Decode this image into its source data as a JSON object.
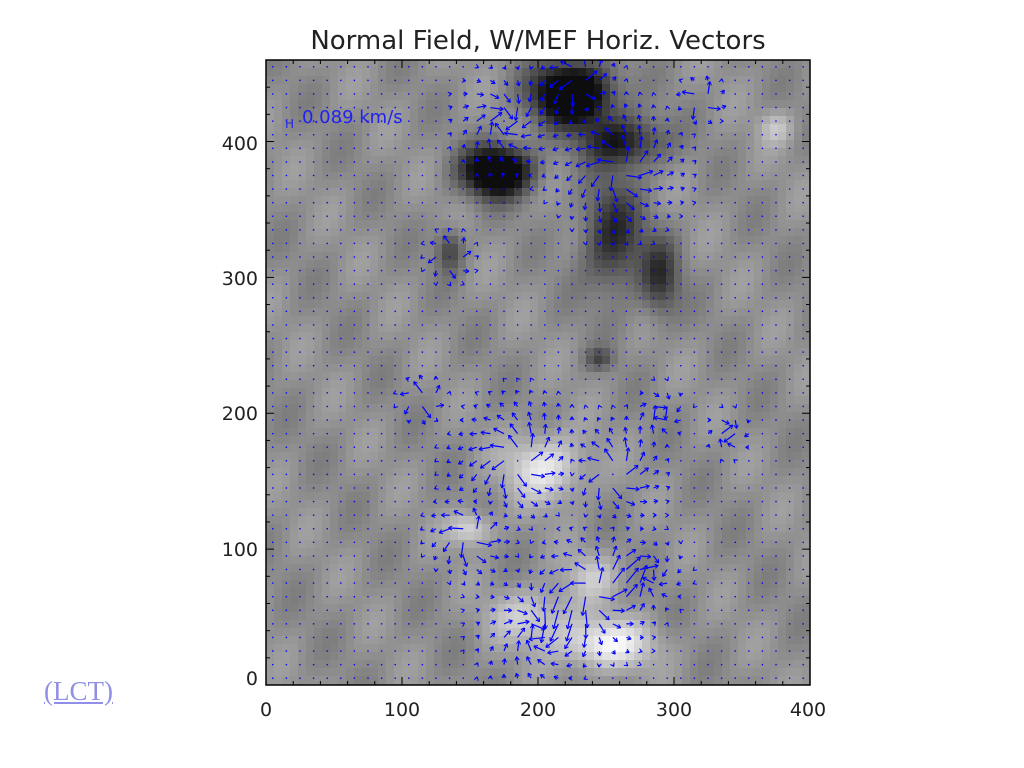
{
  "link": {
    "label": "(LCT)"
  },
  "chart_data": {
    "type": "heatmap",
    "title": "Normal Field, W/MEF Horiz. Vectors",
    "xlabel": "",
    "ylabel": "",
    "xlim": [
      0,
      400
    ],
    "ylim": [
      0,
      460
    ],
    "xticks": [
      "0",
      "100",
      "200",
      "300",
      "400"
    ],
    "yticks": [
      "0",
      "100",
      "200",
      "300",
      "400"
    ],
    "overlay": "velocity vectors",
    "vector_color": "#0000ff",
    "annotation": {
      "prefix": "H",
      "text": "0.089 km/s",
      "x": 20,
      "y": 415
    },
    "dark_regions": [
      {
        "x": 225,
        "y": 435,
        "sx": 28,
        "sy": 22,
        "amp": 0.85
      },
      {
        "x": 170,
        "y": 378,
        "sx": 24,
        "sy": 18,
        "amp": 0.85
      },
      {
        "x": 262,
        "y": 400,
        "sx": 30,
        "sy": 18,
        "amp": 0.45
      },
      {
        "x": 255,
        "y": 330,
        "sx": 22,
        "sy": 40,
        "amp": 0.4
      },
      {
        "x": 290,
        "y": 300,
        "sx": 14,
        "sy": 28,
        "amp": 0.35
      },
      {
        "x": 135,
        "y": 320,
        "sx": 10,
        "sy": 16,
        "amp": 0.3
      },
      {
        "x": 245,
        "y": 240,
        "sx": 10,
        "sy": 8,
        "amp": 0.25
      }
    ],
    "bright_regions": [
      {
        "x": 205,
        "y": 160,
        "sx": 28,
        "sy": 24,
        "amp": 0.35
      },
      {
        "x": 150,
        "y": 115,
        "sx": 16,
        "sy": 12,
        "amp": 0.3
      },
      {
        "x": 250,
        "y": 30,
        "sx": 34,
        "sy": 18,
        "amp": 0.4
      },
      {
        "x": 195,
        "y": 50,
        "sx": 30,
        "sy": 20,
        "amp": 0.25
      },
      {
        "x": 240,
        "y": 80,
        "sx": 20,
        "sy": 18,
        "amp": 0.2
      },
      {
        "x": 375,
        "y": 410,
        "sx": 12,
        "sy": 12,
        "amp": 0.2
      }
    ],
    "vortices": [
      {
        "x": 185,
        "y": 165,
        "r": 28,
        "s": 1
      },
      {
        "x": 255,
        "y": 155,
        "r": 22,
        "s": 1
      },
      {
        "x": 115,
        "y": 210,
        "r": 10,
        "s": 1
      },
      {
        "x": 240,
        "y": 70,
        "r": 30,
        "s": 1
      },
      {
        "x": 200,
        "y": 40,
        "r": 26,
        "s": -1
      },
      {
        "x": 150,
        "y": 110,
        "r": 18,
        "s": 1
      },
      {
        "x": 175,
        "y": 415,
        "r": 22,
        "s": -1
      },
      {
        "x": 260,
        "y": 380,
        "r": 28,
        "s": 1
      },
      {
        "x": 135,
        "y": 315,
        "r": 10,
        "s": 1
      },
      {
        "x": 290,
        "y": 200,
        "r": 12,
        "s": -1
      },
      {
        "x": 280,
        "y": 80,
        "r": 18,
        "s": -1
      },
      {
        "x": 230,
        "y": 445,
        "r": 16,
        "s": 1
      },
      {
        "x": 320,
        "y": 430,
        "r": 10,
        "s": 1
      },
      {
        "x": 340,
        "y": 185,
        "r": 10,
        "s": -1
      }
    ]
  }
}
